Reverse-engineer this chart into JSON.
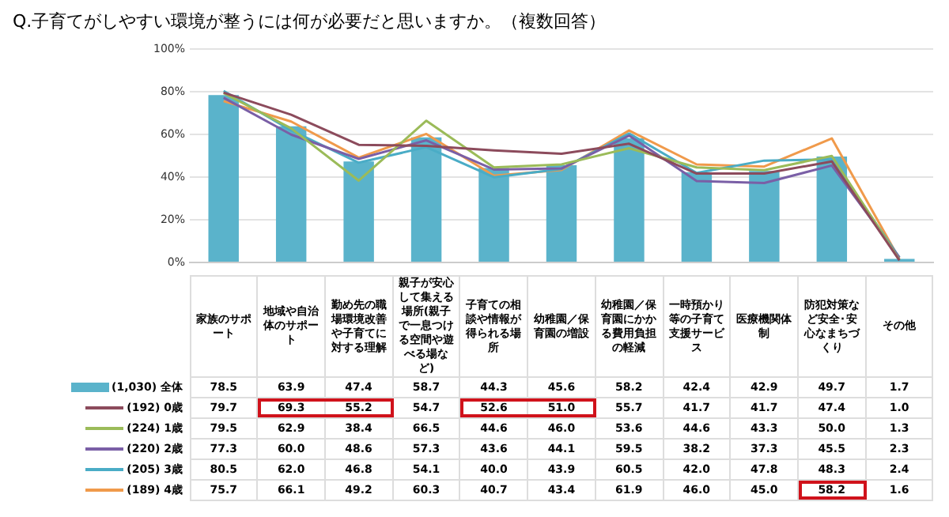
{
  "chart_data": {
    "type": "line",
    "title": "Q.子育てがしやすい環境が整うには何が必要だと思いますか。（複数回答）",
    "categories": [
      "家族のサポート",
      "地域や自治体のサポート",
      "勤め先の職場環境改善や子育てに対する理解",
      "親子が安心して集える場所(親子で一息つける空間や遊べる場など)",
      "子育ての相談や情報が得られる場所",
      "幼稚園／保育園の増設",
      "幼稚園／保育園にかかる費用負担の軽減",
      "一時預かり等の子育て支援サービス",
      "医療機関体制",
      "防犯対策など安全･安心なまちづくり",
      "その他"
    ],
    "series": [
      {
        "name": "(1,030) 全体",
        "type": "bar",
        "color": "#5ab3cb",
        "values": [
          78.5,
          63.9,
          47.4,
          58.7,
          44.3,
          45.6,
          58.2,
          42.4,
          42.9,
          49.7,
          1.7
        ],
        "value_labels": [
          "78.5",
          "63.9",
          "47.4",
          "58.7",
          "44.3",
          "45.6",
          "58.2",
          "42.4",
          "42.9",
          "49.7",
          "1.7"
        ]
      },
      {
        "name": "(192) 0歳",
        "color": "#8c4b5c",
        "values": [
          79.7,
          69.3,
          55.2,
          54.7,
          52.6,
          51.0,
          55.7,
          41.7,
          41.7,
          47.4,
          1.0
        ],
        "value_labels": [
          "79.7",
          "69.3",
          "55.2",
          "54.7",
          "52.6",
          "51.0",
          "55.7",
          "41.7",
          "41.7",
          "47.4",
          "1.0"
        ]
      },
      {
        "name": "(224) 1歳",
        "color": "#9bbb59",
        "values": [
          79.5,
          62.9,
          38.4,
          66.5,
          44.6,
          46.0,
          53.6,
          44.6,
          43.3,
          50.0,
          1.3
        ],
        "value_labels": [
          "79.5",
          "62.9",
          "38.4",
          "66.5",
          "44.6",
          "46.0",
          "53.6",
          "44.6",
          "43.3",
          "50.0",
          "1.3"
        ]
      },
      {
        "name": "(220) 2歳",
        "color": "#7a5fa6",
        "values": [
          77.3,
          60.0,
          48.6,
          57.3,
          43.6,
          44.1,
          59.5,
          38.2,
          37.3,
          45.5,
          2.3
        ],
        "value_labels": [
          "77.3",
          "60.0",
          "48.6",
          "57.3",
          "43.6",
          "44.1",
          "59.5",
          "38.2",
          "37.3",
          "45.5",
          "2.3"
        ]
      },
      {
        "name": "(205) 3歳",
        "color": "#4aacc6",
        "values": [
          80.5,
          62.0,
          46.8,
          54.1,
          40.0,
          43.9,
          60.5,
          42.0,
          47.8,
          48.3,
          2.4
        ],
        "value_labels": [
          "80.5",
          "62.0",
          "46.8",
          "54.1",
          "40.0",
          "43.9",
          "60.5",
          "42.0",
          "47.8",
          "48.3",
          "2.4"
        ]
      },
      {
        "name": "(189) 4歳",
        "color": "#f09a4b",
        "values": [
          75.7,
          66.1,
          49.2,
          60.3,
          40.7,
          43.4,
          61.9,
          46.0,
          45.0,
          58.2,
          1.6
        ],
        "value_labels": [
          "75.7",
          "66.1",
          "49.2",
          "60.3",
          "40.7",
          "43.4",
          "61.9",
          "46.0",
          "45.0",
          "58.2",
          "1.6"
        ]
      }
    ],
    "ylim": [
      0,
      100
    ],
    "yticks": [
      {
        "value": 0,
        "label": "0%"
      },
      {
        "value": 20,
        "label": "20%"
      },
      {
        "value": 40,
        "label": "40%"
      },
      {
        "value": 60,
        "label": "60%"
      },
      {
        "value": 80,
        "label": "80%"
      },
      {
        "value": 100,
        "label": "100%"
      }
    ],
    "grid": "y",
    "legend": "bottom",
    "marker": "none",
    "line_style": "solid"
  }
}
